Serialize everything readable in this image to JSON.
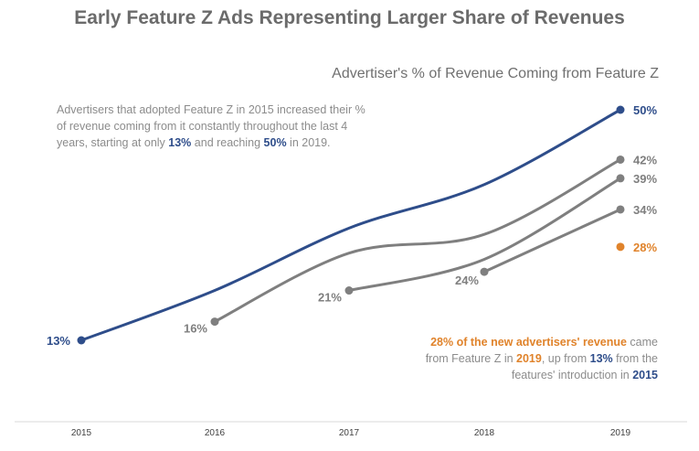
{
  "colors": {
    "feature_z_2015": "#2e4d8a",
    "other_cohorts": "#7f7f7f",
    "new_advertisers": "#e0832b",
    "text_gray": "#8c8c8c"
  },
  "left_note": {
    "p1": "Advertisers that adopted Feature Z in 2015 increased their % of revenue coming from it constantly throughout the last 4 years, starting at only ",
    "v1": "13%",
    "p2": " and reaching ",
    "v2": "50%",
    "p3": " in 2019."
  },
  "right_note": {
    "v1": "28% of the new advertisers' revenue",
    "p1": " came from Feature Z in ",
    "v2": "2019",
    "p2": ", up from ",
    "v3": "13%",
    "p3": " from the features' introduction in ",
    "v4": "2015"
  },
  "chart_data": {
    "type": "line",
    "title": "Early Feature Z Ads Representing Larger Share of Revenues",
    "subtitle": "Advertiser's % of Revenue Coming from Feature Z",
    "x": [
      "2015",
      "2016",
      "2017",
      "2018",
      "2019"
    ],
    "ylim": [
      0,
      55
    ],
    "grid": false,
    "legend": "none",
    "series": [
      {
        "color": "#2e4d8a",
        "values": [
          13,
          21,
          31,
          38,
          50
        ],
        "point_labels": [
          "13%",
          "",
          "",
          "",
          "50%"
        ]
      },
      {
        "color": "#7f7f7f",
        "values": [
          null,
          16,
          27,
          30,
          42
        ],
        "point_labels": [
          "",
          "16%",
          "",
          "",
          "42%"
        ]
      },
      {
        "color": "#7f7f7f",
        "values": [
          null,
          null,
          21,
          26,
          39
        ],
        "point_labels": [
          "",
          "",
          "21%",
          "",
          "39%"
        ]
      },
      {
        "color": "#7f7f7f",
        "values": [
          null,
          null,
          null,
          24,
          34
        ],
        "point_labels": [
          "",
          "",
          "",
          "24%",
          "34%"
        ]
      },
      {
        "color": "#e0832b",
        "values": [
          null,
          null,
          null,
          null,
          28
        ],
        "point_labels": [
          "",
          "",
          "",
          "",
          "28%"
        ]
      }
    ]
  }
}
